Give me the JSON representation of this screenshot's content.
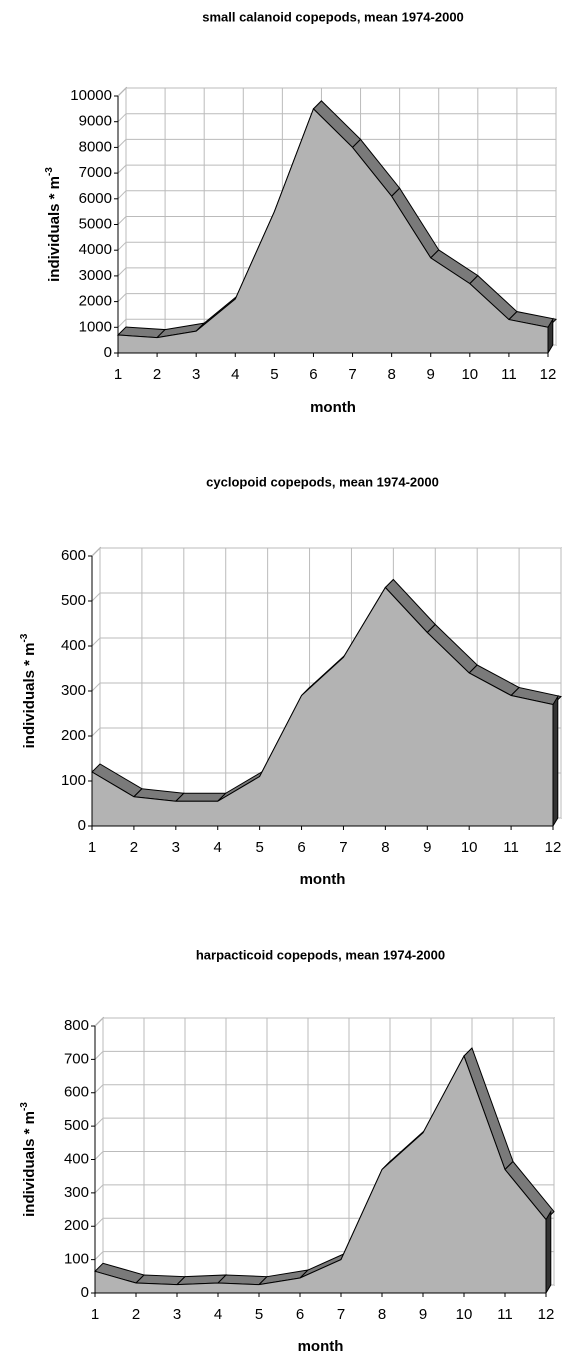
{
  "chart_data": [
    {
      "type": "area",
      "title": "small calanoid copepods, mean 1974-2000",
      "xlabel": "month",
      "ylabel": "individuals * m",
      "ylabel_exponent": "-3",
      "x": [
        1,
        2,
        3,
        4,
        5,
        6,
        7,
        8,
        9,
        10,
        11,
        12
      ],
      "values": [
        700,
        600,
        850,
        2100,
        5500,
        9500,
        8000,
        6100,
        3700,
        2700,
        1300,
        1000
      ],
      "color": "#b3b3b3",
      "xlim": [
        1,
        12
      ],
      "xticks": [
        1,
        2,
        3,
        4,
        5,
        6,
        7,
        8,
        9,
        10,
        11,
        12
      ],
      "ylim": [
        0,
        10000
      ],
      "yticks": [
        0,
        1000,
        2000,
        3000,
        4000,
        5000,
        6000,
        7000,
        8000,
        9000,
        10000
      ],
      "grid": true
    },
    {
      "type": "area",
      "title": "cyclopoid copepods, mean 1974-2000",
      "xlabel": "month",
      "ylabel": "individuals * m",
      "ylabel_exponent": "-3",
      "x": [
        1,
        2,
        3,
        4,
        5,
        6,
        7,
        8,
        9,
        10,
        11,
        12
      ],
      "values": [
        120,
        65,
        55,
        55,
        110,
        290,
        375,
        530,
        430,
        340,
        290,
        270
      ],
      "color": "#b3b3b3",
      "xlim": [
        1,
        12
      ],
      "xticks": [
        1,
        2,
        3,
        4,
        5,
        6,
        7,
        8,
        9,
        10,
        11,
        12
      ],
      "ylim": [
        0,
        600
      ],
      "yticks": [
        0,
        100,
        200,
        300,
        400,
        500,
        600
      ],
      "grid": true
    },
    {
      "type": "area",
      "title": "harpacticoid copepods, mean 1974-2000",
      "xlabel": "month",
      "ylabel": "individuals * m",
      "ylabel_exponent": "-3",
      "x": [
        1,
        2,
        3,
        4,
        5,
        6,
        7,
        8,
        9,
        10,
        11,
        12
      ],
      "values": [
        65,
        30,
        25,
        30,
        25,
        45,
        100,
        370,
        480,
        710,
        370,
        220
      ],
      "color": "#b3b3b3",
      "xlim": [
        1,
        12
      ],
      "xticks": [
        1,
        2,
        3,
        4,
        5,
        6,
        7,
        8,
        9,
        10,
        11,
        12
      ],
      "ylim": [
        0,
        800
      ],
      "yticks": [
        0,
        100,
        200,
        300,
        400,
        500,
        600,
        700,
        800
      ],
      "grid": true
    }
  ]
}
